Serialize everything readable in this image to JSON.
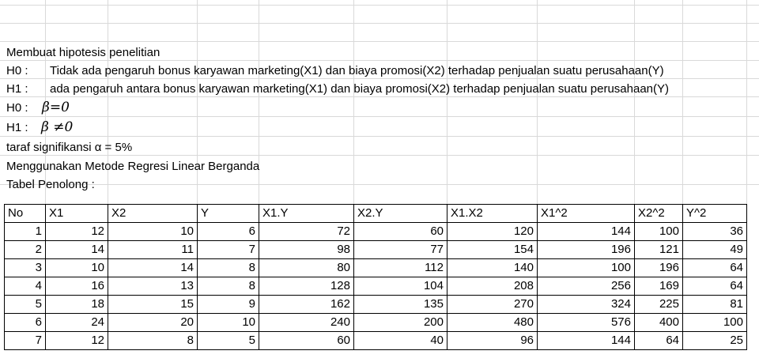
{
  "text": {
    "title": "Membuat hipotesis penelitian",
    "h0_label": "H0 :",
    "h0_text": "Tidak ada pengaruh bonus karyawan marketing(X1)  dan biaya promosi(X2) terhadap penjualan suatu perusahaan(Y)",
    "h1_label": "H1 :",
    "h1_text": "ada pengaruh antara bonus karyawan marketing(X1) dan biaya promosi(X2) terhadap penjualan suatu perusahaan(Y)",
    "h0b_label": "H0 :",
    "h0b_formula": "β=0",
    "h1b_label": "H1 :",
    "h1b_formula": "β ≠0",
    "alpha": "taraf signifikansi α = 5%",
    "method": "Menggunakan Metode Regresi Linear Berganda",
    "table_title": "Tabel Penolong :"
  },
  "table": {
    "headers": [
      "No",
      "X1",
      "X2",
      "Y",
      "X1.Y",
      "X2.Y",
      "X1.X2",
      "X1^2",
      "X2^2",
      "Y^2"
    ],
    "rows": [
      [
        "1",
        "12",
        "10",
        "6",
        "72",
        "60",
        "120",
        "144",
        "100",
        "36"
      ],
      [
        "2",
        "14",
        "11",
        "7",
        "98",
        "77",
        "154",
        "196",
        "121",
        "49"
      ],
      [
        "3",
        "10",
        "14",
        "8",
        "80",
        "112",
        "140",
        "100",
        "196",
        "64"
      ],
      [
        "4",
        "16",
        "13",
        "8",
        "128",
        "104",
        "208",
        "256",
        "169",
        "64"
      ],
      [
        "5",
        "18",
        "15",
        "9",
        "162",
        "135",
        "270",
        "324",
        "225",
        "81"
      ],
      [
        "6",
        "24",
        "20",
        "10",
        "240",
        "200",
        "480",
        "576",
        "400",
        "100"
      ],
      [
        "7",
        "12",
        "8",
        "5",
        "60",
        "40",
        "96",
        "144",
        "64",
        "25"
      ]
    ]
  }
}
